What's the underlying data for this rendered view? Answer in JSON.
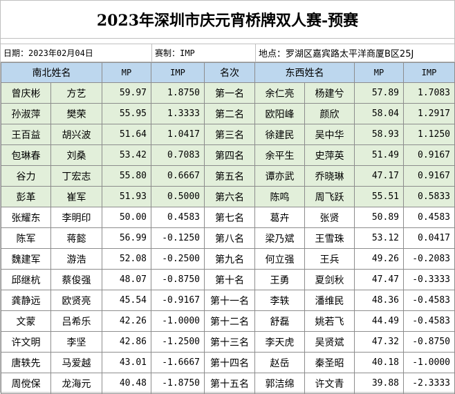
{
  "title": "2023年深圳市庆元宵桥牌双人赛-预赛",
  "info": {
    "date": "日期：2023年02月04日",
    "scoring": "赛制：IMP",
    "location": "地点：罗湖区嘉宾路太平洋商厦B区25J"
  },
  "headers": {
    "ns_names": "南北姓名",
    "ns_mp": "MP",
    "ns_imp": "IMP",
    "rank": "名次",
    "ew_names": "东西姓名",
    "ew_mp": "MP",
    "ew_imp": "IMP"
  },
  "rows": [
    {
      "ns1": "曾庆彬",
      "ns2": "方艺",
      "ns_mp": "59.97",
      "ns_imp": "1.8750",
      "rank": "第一名",
      "ew1": "余仁亮",
      "ew2": "杨建兮",
      "ew_mp": "57.89",
      "ew_imp": "1.7083"
    },
    {
      "ns1": "孙淑萍",
      "ns2": "樊荣",
      "ns_mp": "55.95",
      "ns_imp": "1.3333",
      "rank": "第二名",
      "ew1": "欧阳峰",
      "ew2": "颜欣",
      "ew_mp": "58.04",
      "ew_imp": "1.2917"
    },
    {
      "ns1": "王百益",
      "ns2": "胡兴波",
      "ns_mp": "51.64",
      "ns_imp": "1.0417",
      "rank": "第三名",
      "ew1": "徐建民",
      "ew2": "吴中华",
      "ew_mp": "58.93",
      "ew_imp": "1.1250"
    },
    {
      "ns1": "包琳春",
      "ns2": "刘桑",
      "ns_mp": "53.42",
      "ns_imp": "0.7083",
      "rank": "第四名",
      "ew1": "余平生",
      "ew2": "史萍英",
      "ew_mp": "51.49",
      "ew_imp": "0.9167"
    },
    {
      "ns1": "谷力",
      "ns2": "丁宏志",
      "ns_mp": "55.80",
      "ns_imp": "0.6667",
      "rank": "第五名",
      "ew1": "谭亦武",
      "ew2": "乔晓琳",
      "ew_mp": "47.17",
      "ew_imp": "0.9167"
    },
    {
      "ns1": "彭革",
      "ns2": "崔军",
      "ns_mp": "51.93",
      "ns_imp": "0.5000",
      "rank": "第六名",
      "ew1": "陈鸣",
      "ew2": "周飞跃",
      "ew_mp": "55.51",
      "ew_imp": "0.5833"
    },
    {
      "ns1": "张耀东",
      "ns2": "李明印",
      "ns_mp": "50.00",
      "ns_imp": "0.4583",
      "rank": "第七名",
      "ew1": "葛卉",
      "ew2": "张贤",
      "ew_mp": "50.89",
      "ew_imp": "0.4583"
    },
    {
      "ns1": "陈军",
      "ns2": "蒋懿",
      "ns_mp": "56.99",
      "ns_imp": "-0.1250",
      "rank": "第八名",
      "ew1": "梁乃斌",
      "ew2": "王雪珠",
      "ew_mp": "53.12",
      "ew_imp": "0.0417"
    },
    {
      "ns1": "魏建军",
      "ns2": "游浩",
      "ns_mp": "52.08",
      "ns_imp": "-0.2500",
      "rank": "第九名",
      "ew1": "何立强",
      "ew2": "王兵",
      "ew_mp": "49.26",
      "ew_imp": "-0.2083"
    },
    {
      "ns1": "邱继杭",
      "ns2": "蔡俊强",
      "ns_mp": "48.07",
      "ns_imp": "-0.8750",
      "rank": "第十名",
      "ew1": "王勇",
      "ew2": "夏剑秋",
      "ew_mp": "47.47",
      "ew_imp": "-0.3333"
    },
    {
      "ns1": "龚静远",
      "ns2": "欧贤亮",
      "ns_mp": "45.54",
      "ns_imp": "-0.9167",
      "rank": "第十一名",
      "ew1": "李轶",
      "ew2": "潘维民",
      "ew_mp": "48.36",
      "ew_imp": "-0.4583"
    },
    {
      "ns1": "文蒙",
      "ns2": "吕希乐",
      "ns_mp": "42.26",
      "ns_imp": "-1.0000",
      "rank": "第十二名",
      "ew1": "舒磊",
      "ew2": "姚若飞",
      "ew_mp": "44.49",
      "ew_imp": "-0.4583"
    },
    {
      "ns1": "许文明",
      "ns2": "李坚",
      "ns_mp": "42.86",
      "ns_imp": "-1.2500",
      "rank": "第十三名",
      "ew1": "李天虎",
      "ew2": "吴贤斌",
      "ew_mp": "47.32",
      "ew_imp": "-0.8750"
    },
    {
      "ns1": "唐轶先",
      "ns2": "马爱越",
      "ns_mp": "43.01",
      "ns_imp": "-1.6667",
      "rank": "第十四名",
      "ew1": "赵岳",
      "ew2": "秦圣昭",
      "ew_mp": "40.18",
      "ew_imp": "-1.0000"
    },
    {
      "ns1": "周傥保",
      "ns2": "龙海元",
      "ns_mp": "40.48",
      "ns_imp": "-1.8750",
      "rank": "第十五名",
      "ew1": "郭洁绵",
      "ew2": "许文青",
      "ew_mp": "39.88",
      "ew_imp": "-2.3333"
    }
  ]
}
